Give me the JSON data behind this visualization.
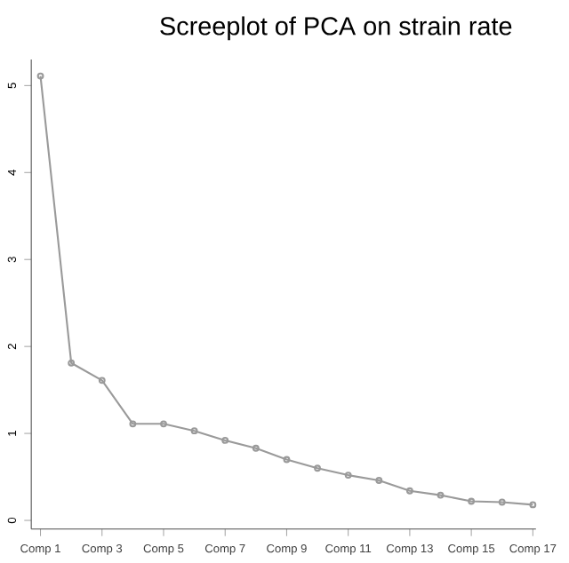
{
  "chart_data": {
    "type": "line",
    "title": "Screeplot of PCA on strain rate",
    "categories": [
      "Comp 1",
      null,
      "Comp 3",
      null,
      "Comp 5",
      null,
      "Comp 7",
      null,
      "Comp 9",
      null,
      "Comp 11",
      null,
      "Comp 13",
      null,
      "Comp 15",
      null,
      "Comp 17"
    ],
    "values": [
      5.11,
      1.81,
      1.61,
      1.11,
      1.11,
      1.03,
      0.92,
      0.83,
      0.7,
      0.6,
      0.52,
      0.46,
      0.34,
      0.29,
      0.22,
      0.21,
      0.18
    ],
    "color": "#9a9a9a",
    "marker": "circle",
    "line_style": "solid",
    "ylim": [
      -0.1,
      5.3
    ],
    "yticks": [
      0,
      1,
      2,
      3,
      4,
      5
    ]
  }
}
